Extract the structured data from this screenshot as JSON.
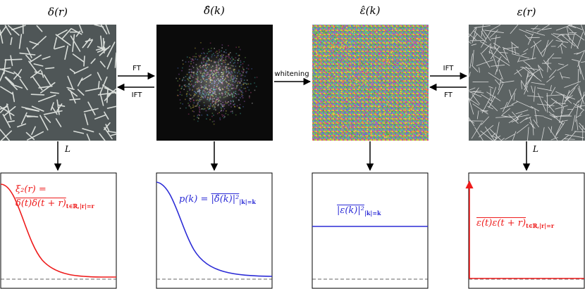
{
  "columns": [
    {
      "id": "delta_r",
      "title": "δ(r)"
    },
    {
      "id": "delta_hat_k",
      "title": "δ̂(k)"
    },
    {
      "id": "eps_hat_k",
      "title": "ε̂(k)"
    },
    {
      "id": "eps_r",
      "title": "ε(r)"
    }
  ],
  "arrows": {
    "ft_1": "FT",
    "ift_1": "IFT",
    "whitening": "whitening",
    "ift_2": "IFT",
    "ft_2": "FT",
    "down_L_1": "L",
    "down_L_2": "L"
  },
  "plots": {
    "p1": {
      "line1": "ξ₂(r) =",
      "line2": "δ(t)δ(t + r)",
      "sub2": "t∈ℝ,|r|=r",
      "color": "#ee1b1b"
    },
    "p2": {
      "lhs": "p(k) = ",
      "rhs": "|δ̂(k)|²",
      "sub": "|k|=k",
      "color": "#2b2bd6"
    },
    "p3": {
      "expr": "|ε(k)|²",
      "sub": "|k|=k",
      "color": "#2b2bd6"
    },
    "p4": {
      "expr": "ε(t)ε(t + r)",
      "sub": "t∈ℝ,|r|=r",
      "color": "#ee1b1b"
    }
  }
}
